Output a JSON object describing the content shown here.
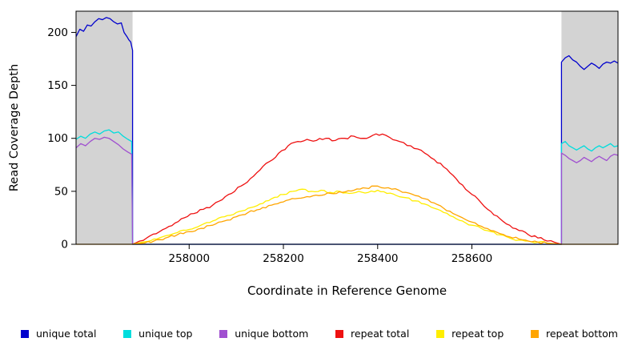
{
  "figure": {
    "background": "#ffffff",
    "shaded_region_color": "#d3d3d3"
  },
  "chart_data": {
    "type": "line",
    "title": "",
    "xlabel": "Coordinate in Reference Genome",
    "ylabel": "Read Coverage Depth",
    "xlim": [
      257760,
      258910
    ],
    "ylim": [
      0,
      220
    ],
    "x_ticks": [
      258000,
      258200,
      258400,
      258600
    ],
    "y_ticks": [
      0,
      50,
      100,
      150,
      200
    ],
    "grid": false,
    "legend_position": "bottom",
    "shaded_regions": [
      {
        "x0": 257760,
        "x1": 257880,
        "color": "#d3d3d3"
      },
      {
        "x0": 258790,
        "x1": 258910,
        "color": "#d3d3d3"
      }
    ],
    "series": [
      {
        "name": "unique total",
        "color": "#0000cd",
        "points": [
          [
            257760,
            196
          ],
          [
            257768,
            203
          ],
          [
            257776,
            201
          ],
          [
            257784,
            207
          ],
          [
            257792,
            206
          ],
          [
            257800,
            210
          ],
          [
            257808,
            213
          ],
          [
            257816,
            212
          ],
          [
            257824,
            214
          ],
          [
            257832,
            213
          ],
          [
            257840,
            210
          ],
          [
            257848,
            208
          ],
          [
            257856,
            209
          ],
          [
            257862,
            200
          ],
          [
            257868,
            196
          ],
          [
            257872,
            193
          ],
          [
            257876,
            191
          ],
          [
            257880,
            183
          ],
          [
            257880,
            0
          ],
          [
            258790,
            0
          ],
          [
            258790,
            172
          ],
          [
            258798,
            176
          ],
          [
            258806,
            178
          ],
          [
            258814,
            174
          ],
          [
            258822,
            172
          ],
          [
            258830,
            168
          ],
          [
            258838,
            165
          ],
          [
            258846,
            168
          ],
          [
            258854,
            171
          ],
          [
            258862,
            169
          ],
          [
            258870,
            166
          ],
          [
            258878,
            170
          ],
          [
            258886,
            172
          ],
          [
            258894,
            171
          ],
          [
            258902,
            173
          ],
          [
            258910,
            171
          ]
        ]
      },
      {
        "name": "unique top",
        "color": "#00dddd",
        "points": [
          [
            257760,
            99
          ],
          [
            257770,
            102
          ],
          [
            257780,
            100
          ],
          [
            257790,
            104
          ],
          [
            257800,
            106
          ],
          [
            257810,
            104
          ],
          [
            257820,
            107
          ],
          [
            257830,
            108
          ],
          [
            257840,
            105
          ],
          [
            257850,
            106
          ],
          [
            257860,
            102
          ],
          [
            257870,
            99
          ],
          [
            257878,
            97
          ],
          [
            257880,
            0
          ],
          [
            258790,
            0
          ],
          [
            258790,
            95
          ],
          [
            258798,
            97
          ],
          [
            258806,
            93
          ],
          [
            258814,
            91
          ],
          [
            258822,
            89
          ],
          [
            258830,
            91
          ],
          [
            258838,
            93
          ],
          [
            258846,
            90
          ],
          [
            258854,
            88
          ],
          [
            258862,
            91
          ],
          [
            258870,
            93
          ],
          [
            258878,
            91
          ],
          [
            258886,
            93
          ],
          [
            258894,
            95
          ],
          [
            258902,
            92
          ],
          [
            258910,
            93
          ]
        ]
      },
      {
        "name": "unique bottom",
        "color": "#a050d0",
        "points": [
          [
            257760,
            91
          ],
          [
            257770,
            95
          ],
          [
            257780,
            93
          ],
          [
            257790,
            97
          ],
          [
            257800,
            100
          ],
          [
            257810,
            99
          ],
          [
            257820,
            101
          ],
          [
            257830,
            100
          ],
          [
            257840,
            97
          ],
          [
            257850,
            94
          ],
          [
            257860,
            90
          ],
          [
            257870,
            87
          ],
          [
            257878,
            85
          ],
          [
            257880,
            0
          ],
          [
            258790,
            0
          ],
          [
            258790,
            86
          ],
          [
            258798,
            84
          ],
          [
            258806,
            81
          ],
          [
            258814,
            79
          ],
          [
            258822,
            77
          ],
          [
            258830,
            79
          ],
          [
            258838,
            82
          ],
          [
            258846,
            80
          ],
          [
            258854,
            78
          ],
          [
            258862,
            81
          ],
          [
            258870,
            83
          ],
          [
            258878,
            81
          ],
          [
            258886,
            79
          ],
          [
            258894,
            83
          ],
          [
            258902,
            85
          ],
          [
            258910,
            84
          ]
        ]
      },
      {
        "name": "repeat total",
        "color": "#ee1111",
        "points": [
          [
            257880,
            0
          ],
          [
            257895,
            3
          ],
          [
            257910,
            6
          ],
          [
            257930,
            10
          ],
          [
            257950,
            15
          ],
          [
            257970,
            20
          ],
          [
            257990,
            25
          ],
          [
            258010,
            29
          ],
          [
            258030,
            33
          ],
          [
            258050,
            37
          ],
          [
            258070,
            42
          ],
          [
            258090,
            48
          ],
          [
            258110,
            55
          ],
          [
            258130,
            62
          ],
          [
            258150,
            70
          ],
          [
            258170,
            78
          ],
          [
            258190,
            86
          ],
          [
            258210,
            93
          ],
          [
            258230,
            97
          ],
          [
            258250,
            99
          ],
          [
            258270,
            98
          ],
          [
            258290,
            100
          ],
          [
            258310,
            98
          ],
          [
            258330,
            100
          ],
          [
            258350,
            102
          ],
          [
            258370,
            100
          ],
          [
            258390,
            103
          ],
          [
            258410,
            104
          ],
          [
            258425,
            101
          ],
          [
            258440,
            98
          ],
          [
            258455,
            96
          ],
          [
            258470,
            93
          ],
          [
            258485,
            90
          ],
          [
            258500,
            86
          ],
          [
            258520,
            80
          ],
          [
            258540,
            73
          ],
          [
            258560,
            65
          ],
          [
            258580,
            56
          ],
          [
            258600,
            47
          ],
          [
            258620,
            39
          ],
          [
            258640,
            31
          ],
          [
            258660,
            24
          ],
          [
            258680,
            18
          ],
          [
            258700,
            13
          ],
          [
            258720,
            9
          ],
          [
            258740,
            6
          ],
          [
            258760,
            3
          ],
          [
            258775,
            2
          ],
          [
            258790,
            0
          ]
        ]
      },
      {
        "name": "repeat top",
        "color": "#ffee00",
        "points": [
          [
            257880,
            0
          ],
          [
            257900,
            2
          ],
          [
            257925,
            5
          ],
          [
            257950,
            8
          ],
          [
            257975,
            11
          ],
          [
            258000,
            14
          ],
          [
            258025,
            18
          ],
          [
            258050,
            22
          ],
          [
            258075,
            26
          ],
          [
            258100,
            30
          ],
          [
            258125,
            34
          ],
          [
            258150,
            38
          ],
          [
            258175,
            43
          ],
          [
            258200,
            47
          ],
          [
            258220,
            50
          ],
          [
            258240,
            52
          ],
          [
            258260,
            50
          ],
          [
            258280,
            51
          ],
          [
            258300,
            49
          ],
          [
            258320,
            50
          ],
          [
            258340,
            48
          ],
          [
            258360,
            50
          ],
          [
            258380,
            49
          ],
          [
            258400,
            51
          ],
          [
            258420,
            48
          ],
          [
            258440,
            46
          ],
          [
            258460,
            44
          ],
          [
            258480,
            41
          ],
          [
            258500,
            38
          ],
          [
            258520,
            34
          ],
          [
            258540,
            30
          ],
          [
            258560,
            26
          ],
          [
            258580,
            22
          ],
          [
            258600,
            18
          ],
          [
            258620,
            15
          ],
          [
            258640,
            12
          ],
          [
            258660,
            9
          ],
          [
            258680,
            6
          ],
          [
            258700,
            4
          ],
          [
            258720,
            3
          ],
          [
            258740,
            2
          ],
          [
            258760,
            1
          ],
          [
            258790,
            0
          ]
        ]
      },
      {
        "name": "repeat bottom",
        "color": "#ffa500",
        "points": [
          [
            257760,
            0
          ],
          [
            257880,
            0
          ],
          [
            257900,
            1
          ],
          [
            257925,
            3
          ],
          [
            257950,
            6
          ],
          [
            257975,
            9
          ],
          [
            258000,
            12
          ],
          [
            258025,
            15
          ],
          [
            258050,
            18
          ],
          [
            258075,
            22
          ],
          [
            258100,
            26
          ],
          [
            258125,
            30
          ],
          [
            258150,
            33
          ],
          [
            258175,
            37
          ],
          [
            258200,
            40
          ],
          [
            258225,
            43
          ],
          [
            258250,
            45
          ],
          [
            258275,
            46
          ],
          [
            258300,
            48
          ],
          [
            258325,
            49
          ],
          [
            258350,
            51
          ],
          [
            258375,
            53
          ],
          [
            258400,
            55
          ],
          [
            258415,
            53
          ],
          [
            258430,
            52
          ],
          [
            258445,
            51
          ],
          [
            258460,
            49
          ],
          [
            258480,
            46
          ],
          [
            258500,
            43
          ],
          [
            258520,
            39
          ],
          [
            258540,
            34
          ],
          [
            258560,
            29
          ],
          [
            258580,
            25
          ],
          [
            258600,
            21
          ],
          [
            258620,
            17
          ],
          [
            258640,
            13
          ],
          [
            258660,
            10
          ],
          [
            258680,
            7
          ],
          [
            258700,
            5
          ],
          [
            258720,
            3
          ],
          [
            258740,
            2
          ],
          [
            258760,
            1
          ],
          [
            258790,
            0
          ],
          [
            258910,
            0
          ]
        ]
      }
    ]
  }
}
